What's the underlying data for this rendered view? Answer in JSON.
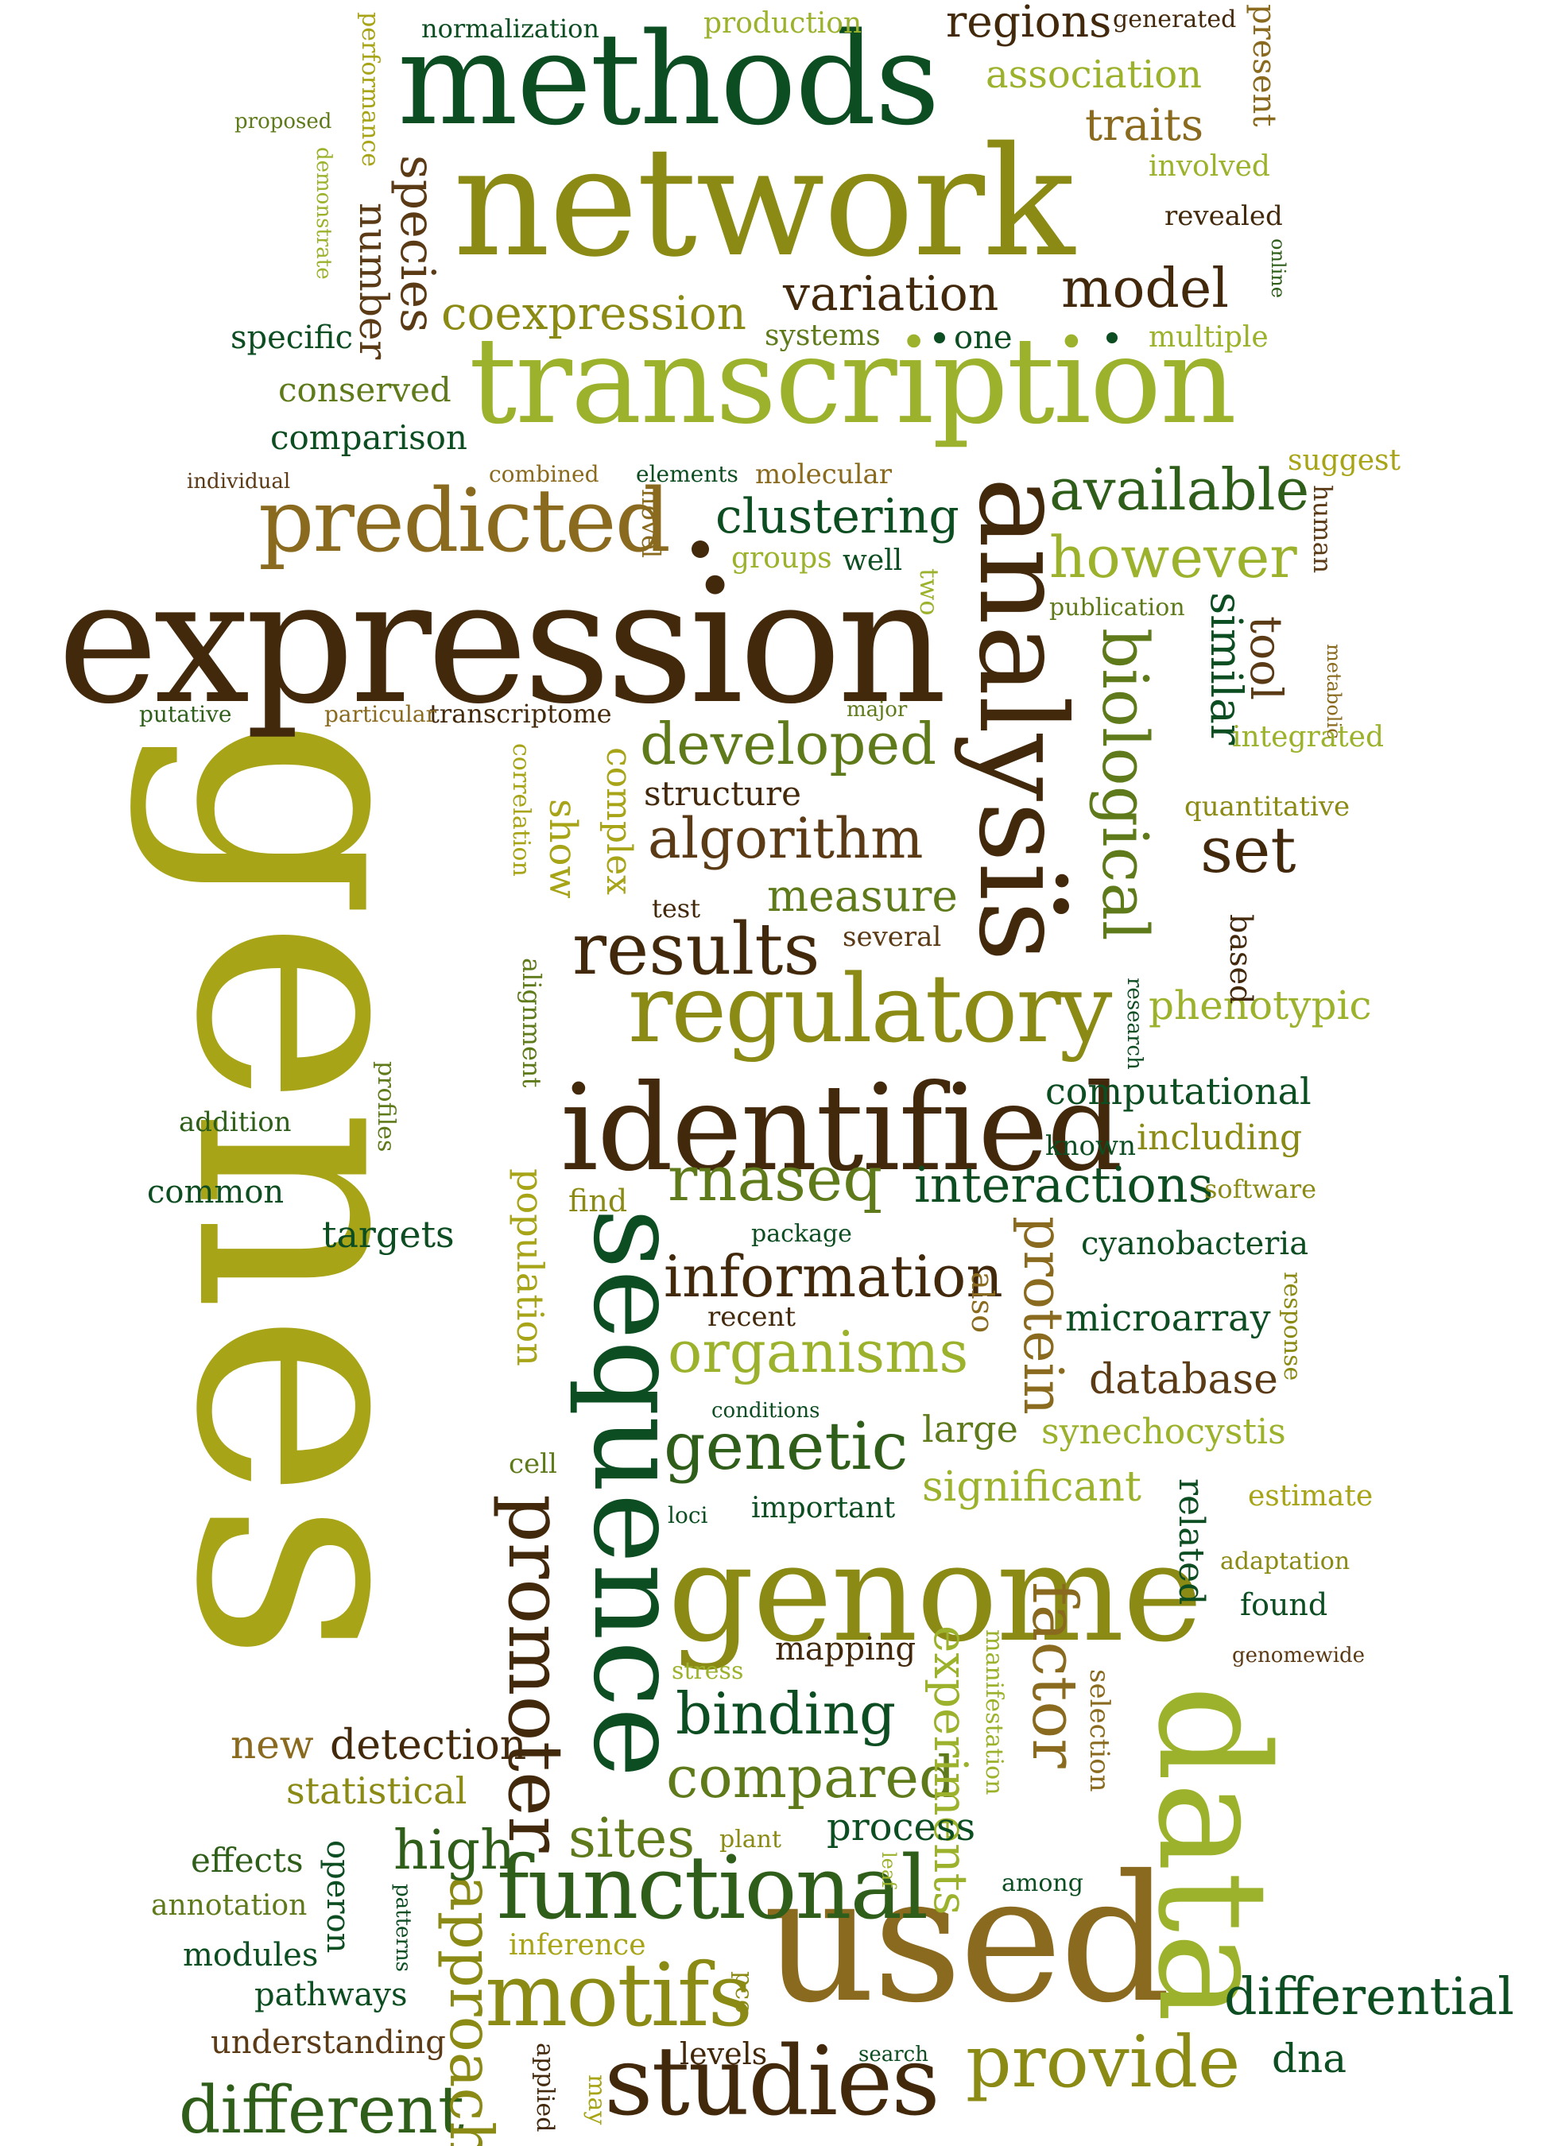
{
  "colors": {
    "dark_green": "#0d4d22",
    "green": "#2f5e1a",
    "olive_green": "#5f7a1a",
    "olive": "#8a8a14",
    "yellow_olive": "#a8a418",
    "lime": "#9cb22c",
    "brown": "#5b3a16",
    "dark_brown": "#43290c",
    "gold_brown": "#8a6a1e"
  },
  "words": [
    {
      "text": "genes",
      "color": "yellow_olive"
    },
    {
      "text": "expression",
      "color": "dark_brown"
    },
    {
      "text": "network",
      "color": "olive"
    },
    {
      "text": "transcription",
      "color": "lime"
    },
    {
      "text": "methods",
      "color": "dark_green"
    },
    {
      "text": "analysis",
      "color": "dark_brown"
    },
    {
      "text": "sequence",
      "color": "dark_green"
    },
    {
      "text": "genome",
      "color": "olive"
    },
    {
      "text": "used",
      "color": "gold_brown"
    },
    {
      "text": "data",
      "color": "lime"
    },
    {
      "text": "identified",
      "color": "dark_brown"
    },
    {
      "text": "regulatory",
      "color": "olive"
    },
    {
      "text": "predicted",
      "color": "gold_brown"
    },
    {
      "text": "functional",
      "color": "green"
    },
    {
      "text": "studies",
      "color": "dark_brown"
    },
    {
      "text": "motifs",
      "color": "olive"
    },
    {
      "text": "promoter",
      "color": "dark_brown"
    },
    {
      "text": "biological",
      "color": "olive_green"
    },
    {
      "text": "available",
      "color": "green"
    },
    {
      "text": "however",
      "color": "lime"
    },
    {
      "text": "results",
      "color": "dark_brown"
    },
    {
      "text": "algorithm",
      "color": "brown"
    },
    {
      "text": "developed",
      "color": "olive_green"
    },
    {
      "text": "information",
      "color": "dark_brown"
    },
    {
      "text": "organisms",
      "color": "lime"
    },
    {
      "text": "genetic",
      "color": "green"
    },
    {
      "text": "binding",
      "color": "dark_green"
    },
    {
      "text": "compared",
      "color": "olive_green"
    },
    {
      "text": "provide",
      "color": "olive"
    },
    {
      "text": "different",
      "color": "green"
    },
    {
      "text": "approach",
      "color": "olive"
    },
    {
      "text": "interactions",
      "color": "dark_green"
    },
    {
      "text": "rnaseq",
      "color": "olive_green"
    },
    {
      "text": "model",
      "color": "dark_brown"
    },
    {
      "text": "variation",
      "color": "dark_brown"
    },
    {
      "text": "clustering",
      "color": "dark_green"
    },
    {
      "text": "differential",
      "color": "dark_green"
    },
    {
      "text": "factor",
      "color": "gold_brown"
    },
    {
      "text": "protein",
      "color": "gold_brown"
    },
    {
      "text": "experiments",
      "color": "lime"
    },
    {
      "text": "species",
      "color": "brown"
    },
    {
      "text": "coexpression",
      "color": "olive"
    },
    {
      "text": "regions",
      "color": "dark_brown"
    },
    {
      "text": "traits",
      "color": "gold_brown"
    },
    {
      "text": "association",
      "color": "lime"
    },
    {
      "text": "number",
      "color": "brown"
    },
    {
      "text": "similar",
      "color": "dark_green"
    },
    {
      "text": "tool",
      "color": "brown"
    },
    {
      "text": "set",
      "color": "dark_brown"
    },
    {
      "text": "measure",
      "color": "olive_green"
    },
    {
      "text": "structure",
      "color": "dark_brown"
    },
    {
      "text": "complex",
      "color": "yellow_olive"
    },
    {
      "text": "show",
      "color": "yellow_olive"
    },
    {
      "text": "sites",
      "color": "olive_green"
    },
    {
      "text": "high",
      "color": "green"
    },
    {
      "text": "process",
      "color": "dark_green"
    },
    {
      "text": "detection",
      "color": "dark_brown"
    },
    {
      "text": "new",
      "color": "gold_brown"
    },
    {
      "text": "statistical",
      "color": "olive"
    },
    {
      "text": "effects",
      "color": "green"
    },
    {
      "text": "modules",
      "color": "dark_green"
    },
    {
      "text": "pathways",
      "color": "dark_green"
    },
    {
      "text": "understanding",
      "color": "brown"
    },
    {
      "text": "operon",
      "color": "dark_green"
    },
    {
      "text": "annotation",
      "color": "olive_green"
    },
    {
      "text": "inference",
      "color": "yellow_olive"
    },
    {
      "text": "levels",
      "color": "dark_brown"
    },
    {
      "text": "dna",
      "color": "dark_green"
    },
    {
      "text": "population",
      "color": "yellow_olive"
    },
    {
      "text": "targets",
      "color": "dark_green"
    },
    {
      "text": "common",
      "color": "dark_green"
    },
    {
      "text": "addition",
      "color": "green"
    },
    {
      "text": "profiles",
      "color": "olive_green"
    },
    {
      "text": "alignment",
      "color": "olive_green"
    },
    {
      "text": "computational",
      "color": "dark_green"
    },
    {
      "text": "including",
      "color": "olive"
    },
    {
      "text": "known",
      "color": "dark_green"
    },
    {
      "text": "phenotypic",
      "color": "lime"
    },
    {
      "text": "software",
      "color": "olive"
    },
    {
      "text": "cyanobacteria",
      "color": "dark_green"
    },
    {
      "text": "microarray",
      "color": "dark_green"
    },
    {
      "text": "database",
      "color": "brown"
    },
    {
      "text": "synechocystis",
      "color": "lime"
    },
    {
      "text": "large",
      "color": "olive_green"
    },
    {
      "text": "significant",
      "color": "lime"
    },
    {
      "text": "estimate",
      "color": "yellow_olive"
    },
    {
      "text": "related",
      "color": "dark_green"
    },
    {
      "text": "adaptation",
      "color": "olive"
    },
    {
      "text": "found",
      "color": "dark_green"
    },
    {
      "text": "genomewide",
      "color": "brown"
    },
    {
      "text": "selection",
      "color": "gold_brown"
    },
    {
      "text": "mapping",
      "color": "dark_brown"
    },
    {
      "text": "manifestation",
      "color": "lime"
    },
    {
      "text": "stress",
      "color": "lime"
    },
    {
      "text": "important",
      "color": "dark_green"
    },
    {
      "text": "loci",
      "color": "dark_green"
    },
    {
      "text": "cell",
      "color": "olive_green"
    },
    {
      "text": "conditions",
      "color": "dark_green"
    },
    {
      "text": "recent",
      "color": "dark_brown"
    },
    {
      "text": "also",
      "color": "gold_brown"
    },
    {
      "text": "package",
      "color": "dark_green"
    },
    {
      "text": "find",
      "color": "olive"
    },
    {
      "text": "response",
      "color": "olive"
    },
    {
      "text": "plant",
      "color": "olive"
    },
    {
      "text": "leaf",
      "color": "lime"
    },
    {
      "text": "among",
      "color": "dark_green"
    },
    {
      "text": "pcc",
      "color": "olive"
    },
    {
      "text": "applied",
      "color": "dark_brown"
    },
    {
      "text": "may",
      "color": "yellow_olive"
    },
    {
      "text": "search",
      "color": "dark_green"
    },
    {
      "text": "patterns",
      "color": "dark_green"
    },
    {
      "text": "test",
      "color": "dark_brown"
    },
    {
      "text": "several",
      "color": "brown"
    },
    {
      "text": "based",
      "color": "dark_brown"
    },
    {
      "text": "research",
      "color": "dark_green"
    },
    {
      "text": "quantitative",
      "color": "olive"
    },
    {
      "text": "integrated",
      "color": "lime"
    },
    {
      "text": "metabolic",
      "color": "gold_brown"
    },
    {
      "text": "major",
      "color": "olive_green"
    },
    {
      "text": "transcriptome",
      "color": "dark_brown"
    },
    {
      "text": "particular",
      "color": "gold_brown"
    },
    {
      "text": "putative",
      "color": "green"
    },
    {
      "text": "correlation",
      "color": "yellow_olive"
    },
    {
      "text": "publication",
      "color": "olive_green"
    },
    {
      "text": "two",
      "color": "lime"
    },
    {
      "text": "well",
      "color": "dark_green"
    },
    {
      "text": "groups",
      "color": "lime"
    },
    {
      "text": "novel",
      "color": "gold_brown"
    },
    {
      "text": "molecular",
      "color": "gold_brown"
    },
    {
      "text": "elements",
      "color": "dark_green"
    },
    {
      "text": "combined",
      "color": "gold_brown"
    },
    {
      "text": "individual",
      "color": "brown"
    },
    {
      "text": "comparison",
      "color": "dark_green"
    },
    {
      "text": "conserved",
      "color": "olive_green"
    },
    {
      "text": "specific",
      "color": "dark_green"
    },
    {
      "text": "suggest",
      "color": "yellow_olive"
    },
    {
      "text": "human",
      "color": "brown"
    },
    {
      "text": "multiple",
      "color": "lime"
    },
    {
      "text": "one",
      "color": "dark_green"
    },
    {
      "text": "systems",
      "color": "olive_green"
    },
    {
      "text": "online",
      "color": "green"
    },
    {
      "text": "revealed",
      "color": "dark_brown"
    },
    {
      "text": "involved",
      "color": "lime"
    },
    {
      "text": "present",
      "color": "gold_brown"
    },
    {
      "text": "generated",
      "color": "dark_brown"
    },
    {
      "text": "production",
      "color": "lime"
    },
    {
      "text": "normalization",
      "color": "dark_green"
    },
    {
      "text": "performance",
      "color": "yellow_olive"
    },
    {
      "text": "proposed",
      "color": "olive_green"
    },
    {
      "text": "demonstrate",
      "color": "lime"
    }
  ]
}
